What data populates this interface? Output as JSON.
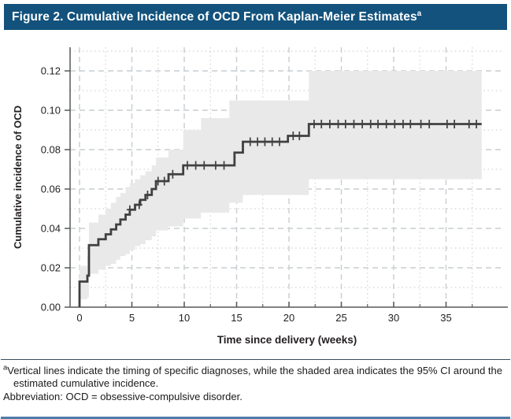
{
  "title": {
    "text": "Figure 2. Cumulative Incidence of OCD From Kaplan-Meier Estimates",
    "superscript": "a"
  },
  "footnotes": {
    "note_a_superscript": "a",
    "note_a_text": "Vertical lines indicate the timing of specific diagnoses, while the shaded area indicates the 95% CI around the estimated cumulative incidence.",
    "abbreviation_text": "Abbreviation: OCD = obsessive-compulsive disorder."
  },
  "colors": {
    "title_bar_bg": "#12527c",
    "title_bar_text": "#ffffff",
    "curve": "#404040",
    "ci_band": "#e9e9e9",
    "grid_major": "#c9cdd1",
    "grid_minor": "#d2d5d8",
    "axis": "#57585a",
    "tick_text": "#231f20",
    "rule_top": "#3a4a5c",
    "rule_bottom": "#4f7ca9"
  },
  "chart_data": {
    "type": "line",
    "subtype": "kaplan-meier-step-with-ci",
    "title": "",
    "xlabel": "Time since delivery (weeks)",
    "ylabel": "Cumulative incidence of OCD",
    "xlim": [
      -0.9,
      41
    ],
    "ylim": [
      0,
      0.132
    ],
    "x_major_ticks": [
      0,
      5,
      10,
      15,
      20,
      25,
      30,
      35
    ],
    "x_minor_ticks": [
      2.5,
      7.5,
      12.5,
      17.5,
      22.5,
      27.5,
      32.5,
      37.5
    ],
    "y_major_ticks": [
      0.0,
      0.02,
      0.04,
      0.06,
      0.08,
      0.1,
      0.12
    ],
    "y_minor_ticks": [
      0.01,
      0.03,
      0.05,
      0.07,
      0.09,
      0.11,
      0.13
    ],
    "grid": "major dashed + minor dotted, both axes",
    "legend_position": "none",
    "series": [
      {
        "name": "Cumulative incidence of OCD",
        "start": [
          0,
          0
        ],
        "steps": [
          [
            0.0,
            0.013
          ],
          [
            0.75,
            0.016
          ],
          [
            0.9,
            0.0315
          ],
          [
            1.8,
            0.0345
          ],
          [
            2.5,
            0.037
          ],
          [
            3.0,
            0.0395
          ],
          [
            3.5,
            0.042
          ],
          [
            3.9,
            0.0445
          ],
          [
            4.4,
            0.047
          ],
          [
            4.8,
            0.0495
          ],
          [
            5.3,
            0.052
          ],
          [
            5.8,
            0.0545
          ],
          [
            6.3,
            0.057
          ],
          [
            6.9,
            0.06
          ],
          [
            7.3,
            0.064
          ],
          [
            8.5,
            0.0675
          ],
          [
            9.9,
            0.072
          ],
          [
            14.8,
            0.0785
          ],
          [
            15.6,
            0.084
          ],
          [
            19.9,
            0.087
          ],
          [
            21.9,
            0.093
          ]
        ],
        "end_time": 38.4,
        "final_value": 0.093
      }
    ],
    "censor_marks_weeks": [
      4.8,
      5.7,
      6.5,
      7.5,
      8.1,
      8.9,
      10.3,
      11.1,
      11.9,
      13.0,
      13.8,
      16.3,
      17.0,
      17.7,
      18.4,
      19.1,
      20.4,
      21.0,
      22.4,
      23.1,
      23.9,
      24.7,
      25.4,
      26.2,
      27.0,
      27.8,
      28.5,
      29.3,
      30.1,
      30.9,
      31.6,
      32.6,
      33.4,
      35.1,
      35.8,
      37.2,
      37.9
    ],
    "ci_band": {
      "label": "95% CI",
      "steps_t_lo_hi": [
        [
          0.0,
          0.004,
          0.021
        ],
        [
          0.75,
          0.005,
          0.026
        ],
        [
          0.9,
          0.017,
          0.043
        ],
        [
          1.8,
          0.019,
          0.047
        ],
        [
          2.5,
          0.021,
          0.05
        ],
        [
          3.0,
          0.022,
          0.053
        ],
        [
          3.5,
          0.024,
          0.056
        ],
        [
          3.9,
          0.026,
          0.058
        ],
        [
          4.4,
          0.027,
          0.061
        ],
        [
          4.8,
          0.029,
          0.063
        ],
        [
          5.3,
          0.031,
          0.065
        ],
        [
          5.8,
          0.032,
          0.067
        ],
        [
          6.3,
          0.034,
          0.069
        ],
        [
          6.9,
          0.036,
          0.072
        ],
        [
          7.3,
          0.039,
          0.076
        ],
        [
          8.5,
          0.041,
          0.08
        ],
        [
          9.9,
          0.045,
          0.09
        ],
        [
          11.6,
          0.048,
          0.096
        ],
        [
          14.3,
          0.053,
          0.105
        ],
        [
          15.6,
          0.057,
          0.105
        ],
        [
          21.9,
          0.065,
          0.12
        ]
      ],
      "end_time": 38.4
    }
  }
}
